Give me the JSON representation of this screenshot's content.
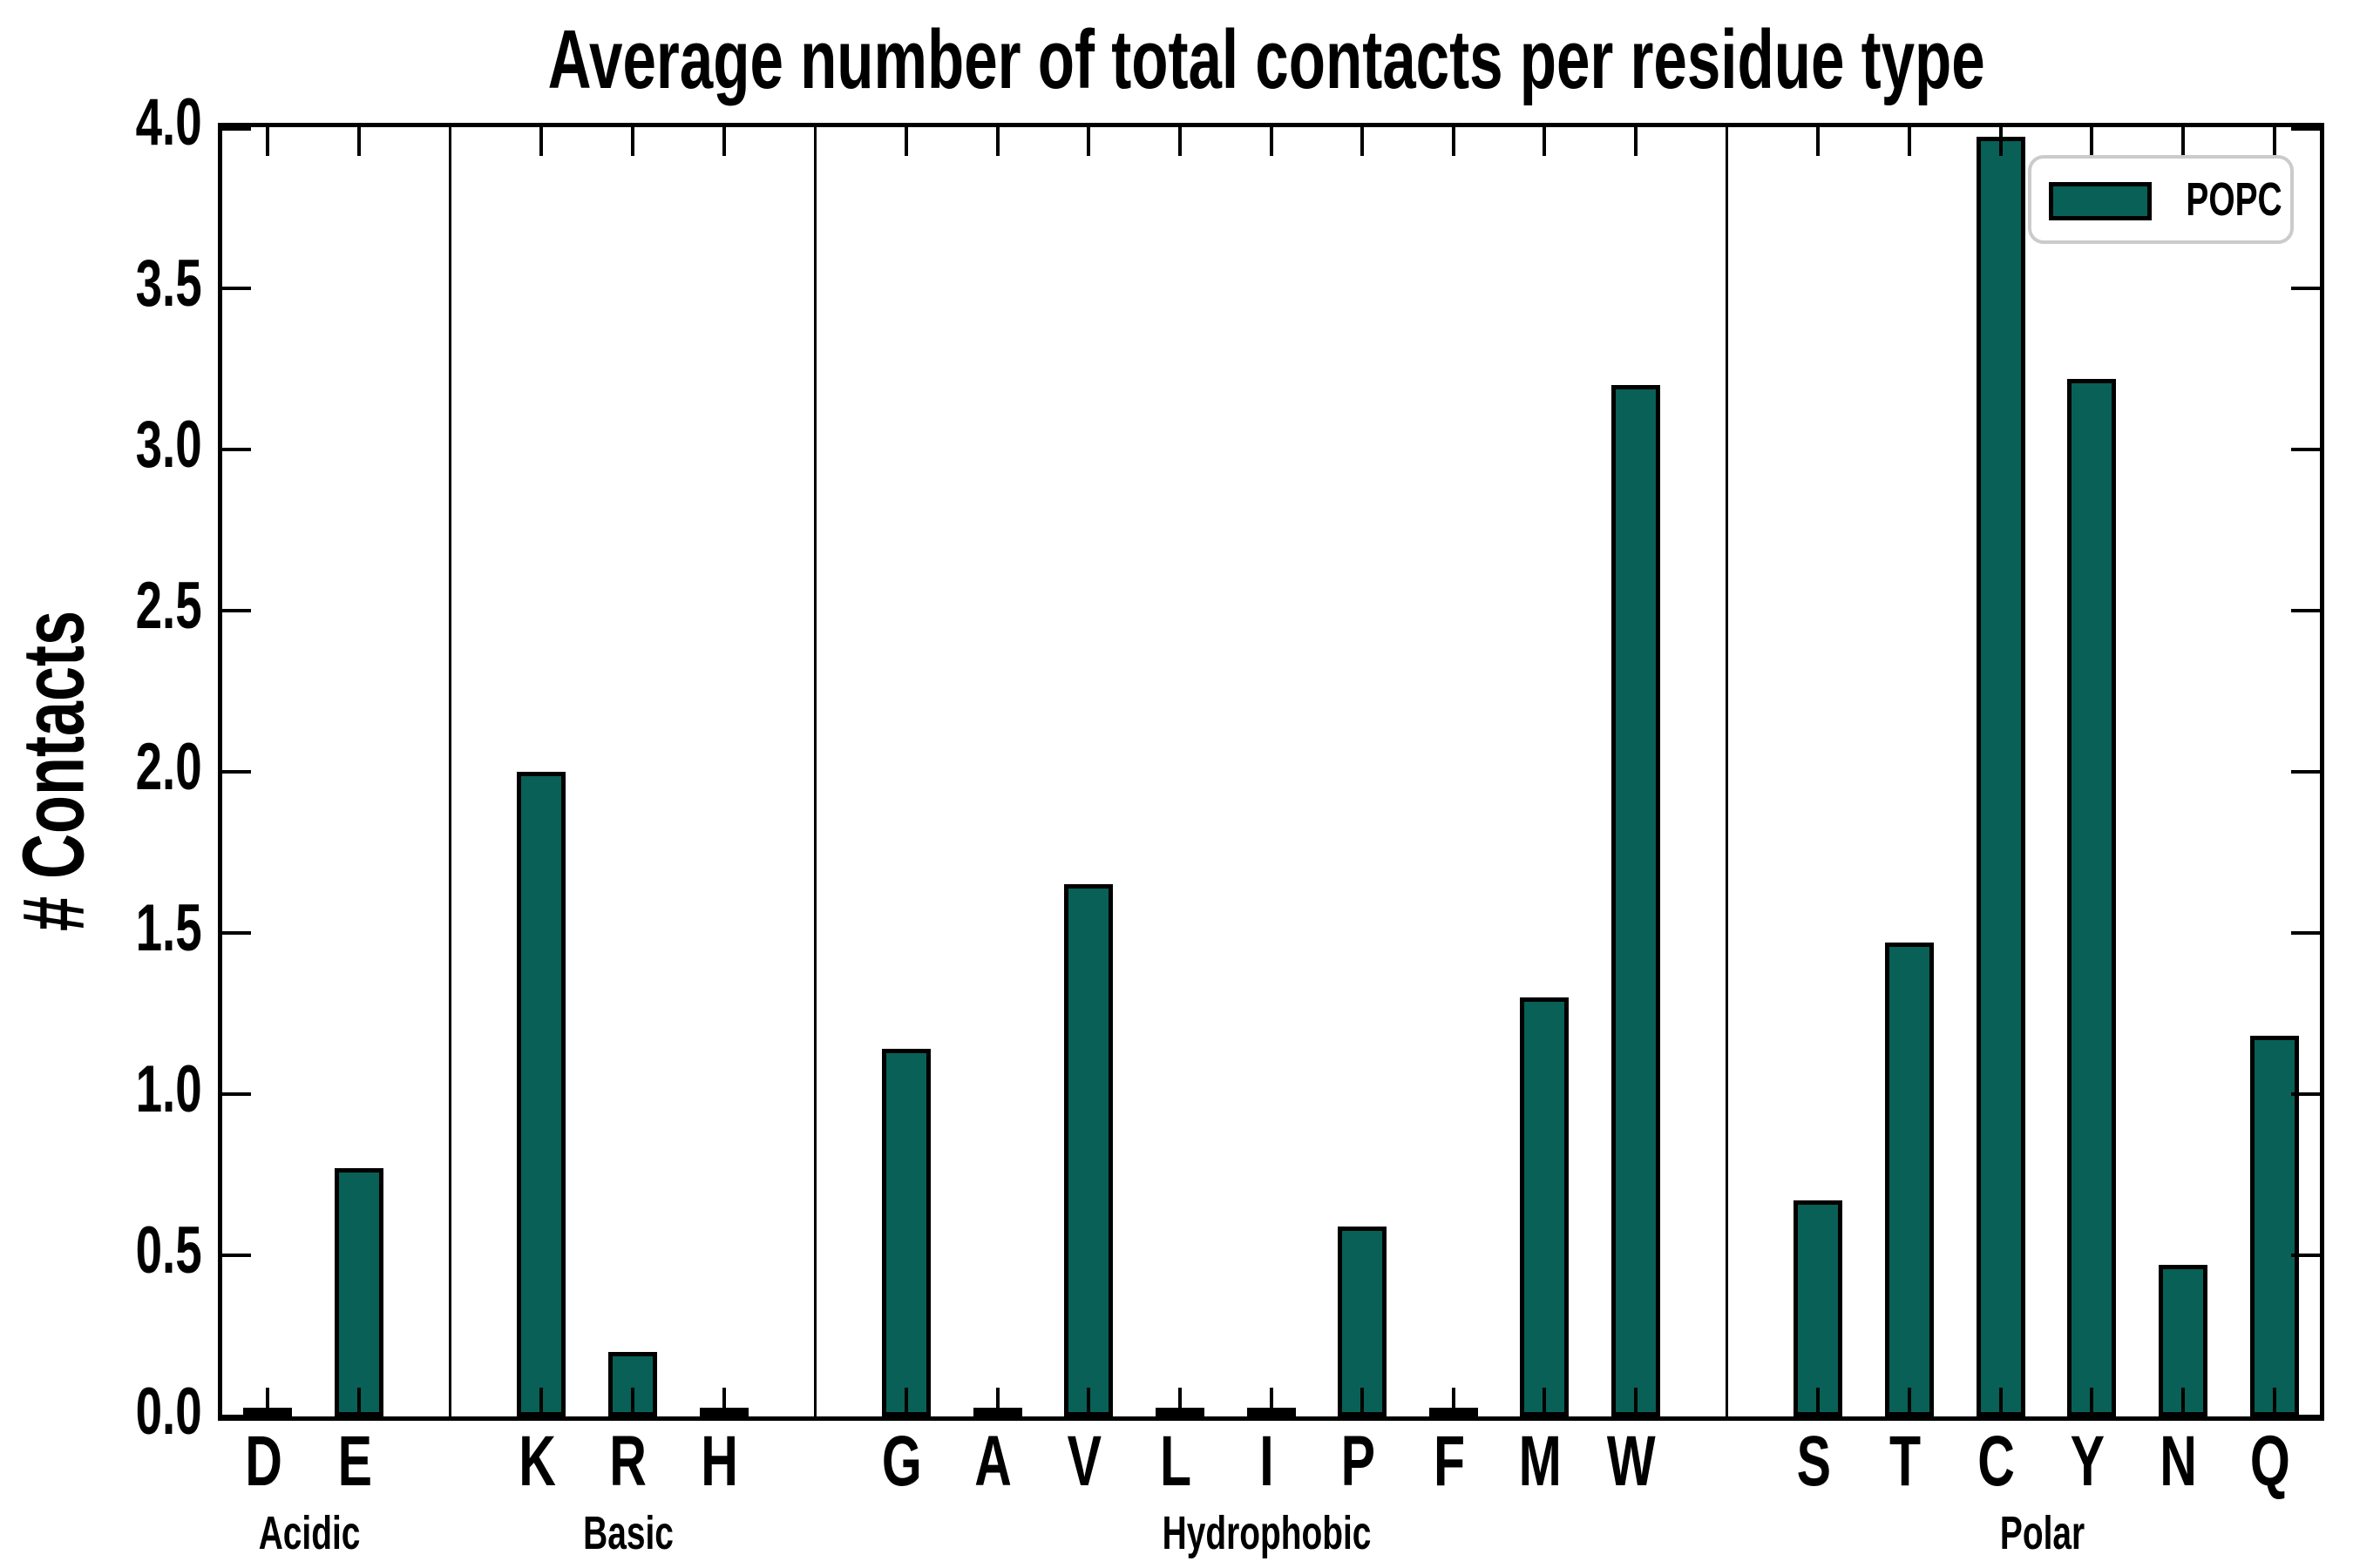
{
  "title": "Average number of total contacts per residue type",
  "ylabel": "# Contacts",
  "legend": {
    "label": "POPC",
    "position": "upper right"
  },
  "colors": {
    "bar_fill": "#086056",
    "bar_edge": "#000000",
    "axis": "#000000",
    "legend_border": "#cbcbcb",
    "background": "#ffffff"
  },
  "chart_data": {
    "type": "bar",
    "title": "Average number of total contacts per residue type",
    "xlabel": "",
    "ylabel": "# Contacts",
    "ylim": [
      0.0,
      4.0
    ],
    "ytick_step": 0.5,
    "yticks": [
      "0.0",
      "0.5",
      "1.0",
      "1.5",
      "2.0",
      "2.5",
      "3.0",
      "3.5",
      "4.0"
    ],
    "grid": false,
    "legend": [
      "POPC"
    ],
    "groups": [
      {
        "name": "Acidic",
        "categories": [
          "D",
          "E"
        ],
        "values": [
          0.01,
          0.77
        ]
      },
      {
        "name": "Basic",
        "categories": [
          "K",
          "R",
          "H"
        ],
        "values": [
          2.0,
          0.2,
          0.01
        ]
      },
      {
        "name": "Hydrophobic",
        "categories": [
          "G",
          "A",
          "V",
          "L",
          "I",
          "P",
          "F",
          "M",
          "W"
        ],
        "values": [
          1.14,
          0.01,
          1.65,
          0.01,
          0.01,
          0.59,
          0.01,
          1.3,
          3.2
        ]
      },
      {
        "name": "Polar",
        "categories": [
          "S",
          "T",
          "C",
          "Y",
          "N",
          "Q"
        ],
        "values": [
          0.67,
          1.47,
          3.97,
          3.22,
          0.47,
          1.18
        ]
      }
    ]
  }
}
